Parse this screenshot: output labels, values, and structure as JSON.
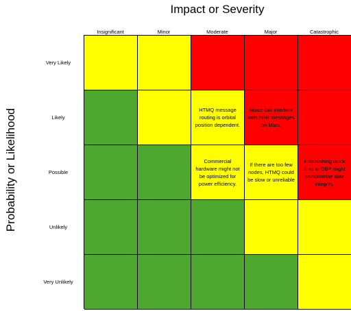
{
  "title": "Impact or Severity",
  "ylabel": "Probability or Likelihood",
  "columns": [
    "Insignificant",
    "Minor",
    "Moderate",
    "Major",
    "Catastrophic"
  ],
  "rows": [
    "Very Likely",
    "Likely",
    "Possible",
    "Unlikely",
    "Very Unlikely"
  ],
  "colors": {
    "green": "#4ea72e",
    "yellow": "#ffff00",
    "red": "#ff0000"
  },
  "cells": {
    "likely_moderate": "HTMQ message routing is orbital position dependent.",
    "likely_major": "Noise can interfere with SRR messages on Mars.",
    "possible_moderate": "Commercial hardware might not be optimized for power efficiency.",
    "possible_major": "If there are too few nodes, HTMQ could be slow or unreliable",
    "possible_catastrophic": "Establishing quick links in DBP might compromise data integrity."
  }
}
